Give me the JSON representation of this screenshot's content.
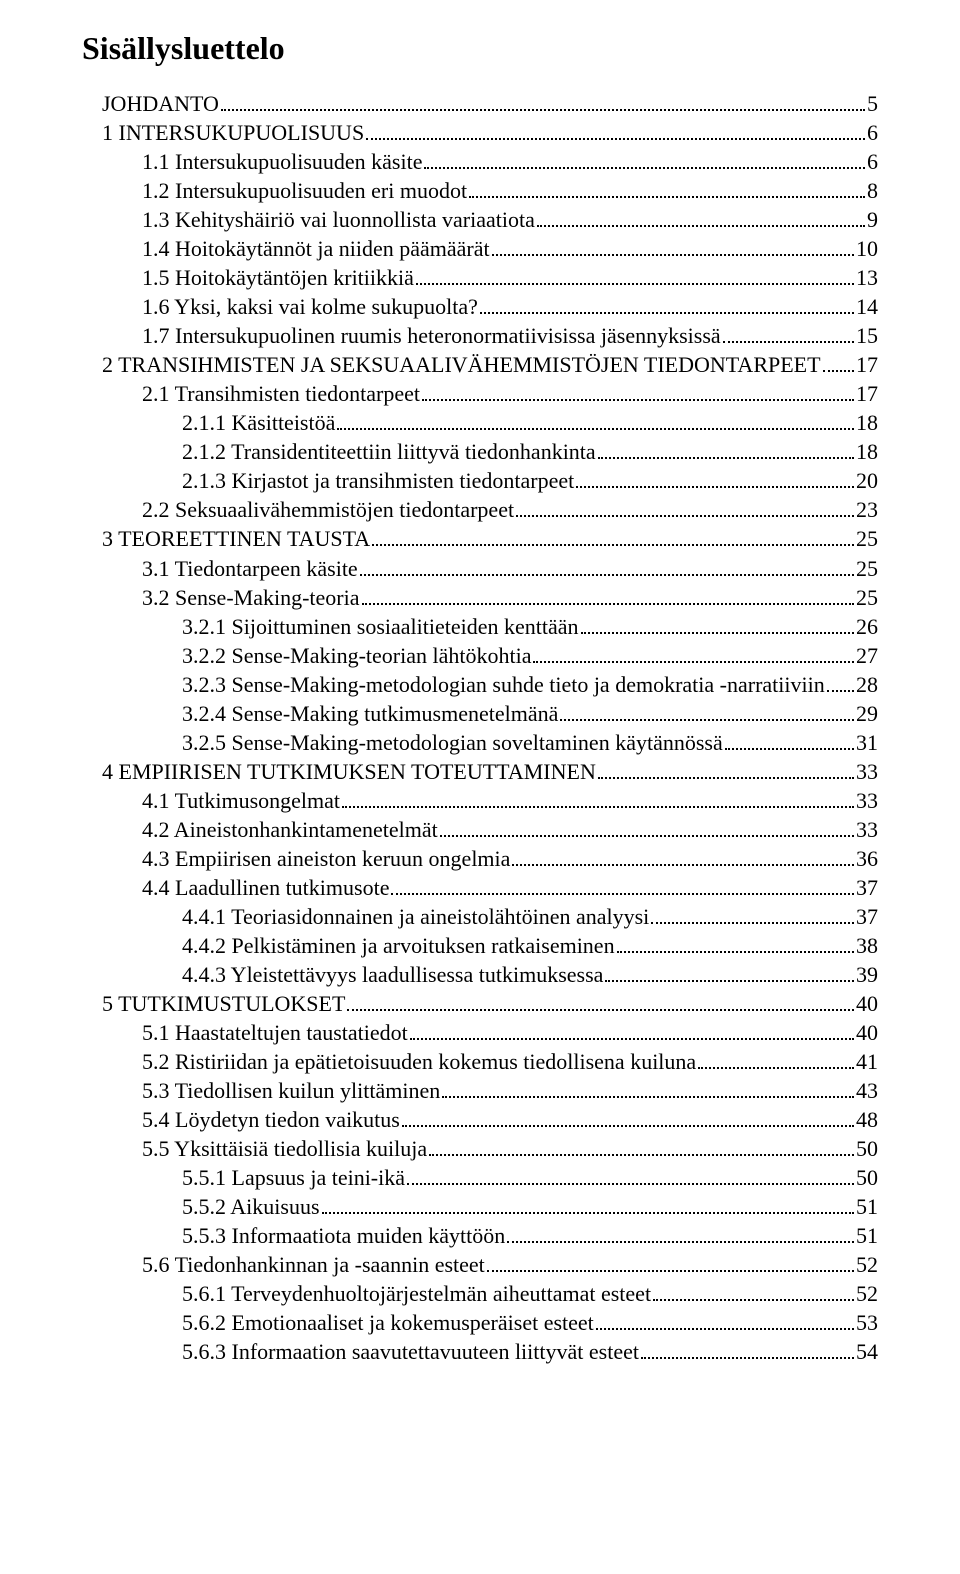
{
  "title": "Sisällysluettelo",
  "font": {
    "family": "Times New Roman",
    "title_size_pt": 32,
    "body_size_pt": 22,
    "color": "#000000"
  },
  "background_color": "#ffffff",
  "entries": [
    {
      "level": 0,
      "label": "JOHDANTO",
      "page": "5"
    },
    {
      "level": 0,
      "label": "1 INTERSUKUPUOLISUUS",
      "page": "6"
    },
    {
      "level": 1,
      "label": "1.1 Intersukupuolisuuden käsite",
      "page": "6"
    },
    {
      "level": 1,
      "label": "1.2 Intersukupuolisuuden eri muodot",
      "page": "8"
    },
    {
      "level": 1,
      "label": "1.3 Kehityshäiriö vai luonnollista variaatiota",
      "page": "9"
    },
    {
      "level": 1,
      "label": "1.4 Hoitokäytännöt ja niiden päämäärät",
      "page": "10"
    },
    {
      "level": 1,
      "label": "1.5 Hoitokäytäntöjen kritiikkiä",
      "page": "13"
    },
    {
      "level": 1,
      "label": "1.6 Yksi, kaksi vai kolme sukupuolta?",
      "page": "14"
    },
    {
      "level": 1,
      "label": "1.7 Intersukupuolinen ruumis heteronormatiivisissa jäsennyksissä",
      "page": "15"
    },
    {
      "level": 0,
      "label": "2 TRANSIHMISTEN JA SEKSUAALIVÄHEMMISTÖJEN TIEDONTARPEET",
      "page": "17"
    },
    {
      "level": 1,
      "label": "2.1 Transihmisten tiedontarpeet",
      "page": "17"
    },
    {
      "level": 2,
      "label": "2.1.1 Käsitteistöä",
      "page": "18"
    },
    {
      "level": 2,
      "label": "2.1.2 Transidentiteettiin liittyvä tiedonhankinta",
      "page": "18"
    },
    {
      "level": 2,
      "label": "2.1.3 Kirjastot ja transihmisten tiedontarpeet",
      "page": "20"
    },
    {
      "level": 1,
      "label": "2.2 Seksuaalivähemmistöjen tiedontarpeet",
      "page": "23"
    },
    {
      "level": 0,
      "label": "3 TEOREETTINEN TAUSTA",
      "page": "25"
    },
    {
      "level": 1,
      "label": "3.1 Tiedontarpeen käsite",
      "page": "25"
    },
    {
      "level": 1,
      "label": "3.2 Sense-Making-teoria",
      "page": "25"
    },
    {
      "level": 2,
      "label": "3.2.1 Sijoittuminen sosiaalitieteiden kenttään",
      "page": "26"
    },
    {
      "level": 2,
      "label": "3.2.2 Sense-Making-teorian lähtökohtia",
      "page": "27"
    },
    {
      "level": 2,
      "label": "3.2.3 Sense-Making-metodologian suhde tieto ja demokratia -narratiiviin",
      "page": "28"
    },
    {
      "level": 2,
      "label": "3.2.4 Sense-Making tutkimusmenetelmänä",
      "page": "29"
    },
    {
      "level": 2,
      "label": "3.2.5 Sense-Making-metodologian soveltaminen käytännössä",
      "page": "31"
    },
    {
      "level": 0,
      "label": "4 EMPIIRISEN TUTKIMUKSEN TOTEUTTAMINEN",
      "page": "33"
    },
    {
      "level": 1,
      "label": "4.1 Tutkimusongelmat",
      "page": "33"
    },
    {
      "level": 1,
      "label": "4.2 Aineistonhankintamenetelmät",
      "page": "33"
    },
    {
      "level": 1,
      "label": "4.3  Empiirisen aineiston keruun ongelmia",
      "page": "36"
    },
    {
      "level": 1,
      "label": "4.4 Laadullinen tutkimusote",
      "page": "37"
    },
    {
      "level": 2,
      "label": "4.4.1 Teoriasidonnainen ja aineistolähtöinen analyysi",
      "page": "37"
    },
    {
      "level": 2,
      "label": "4.4.2 Pelkistäminen ja arvoituksen ratkaiseminen",
      "page": "38"
    },
    {
      "level": 2,
      "label": "4.4.3 Yleistettävyys laadullisessa tutkimuksessa",
      "page": "39"
    },
    {
      "level": 0,
      "label": "5 TUTKIMUSTULOKSET",
      "page": "40"
    },
    {
      "level": 1,
      "label": "5.1  Haastateltujen taustatiedot",
      "page": "40"
    },
    {
      "level": 1,
      "label": "5.2 Ristiriidan ja epätietoisuuden kokemus tiedollisena kuiluna",
      "page": "41"
    },
    {
      "level": 1,
      "label": "5.3 Tiedollisen kuilun ylittäminen",
      "page": "43"
    },
    {
      "level": 1,
      "label": "5.4 Löydetyn tiedon vaikutus",
      "page": "48"
    },
    {
      "level": 1,
      "label": "5.5 Yksittäisiä tiedollisia kuiluja",
      "page": "50"
    },
    {
      "level": 2,
      "label": "5.5.1 Lapsuus ja teini-ikä",
      "page": "50"
    },
    {
      "level": 2,
      "label": "5.5.2 Aikuisuus",
      "page": "51"
    },
    {
      "level": 2,
      "label": "5.5.3 Informaatiota muiden käyttöön",
      "page": "51"
    },
    {
      "level": 1,
      "label": "5.6 Tiedonhankinnan ja -saannin esteet",
      "page": "52"
    },
    {
      "level": 2,
      "label": "5.6.1 Terveydenhuoltojärjestelmän aiheuttamat esteet",
      "page": "52"
    },
    {
      "level": 2,
      "label": "5.6.2 Emotionaaliset ja kokemusperäiset esteet",
      "page": "53"
    },
    {
      "level": 2,
      "label": "5.6.3 Informaation saavutettavuuteen liittyvät esteet",
      "page": "54"
    }
  ]
}
